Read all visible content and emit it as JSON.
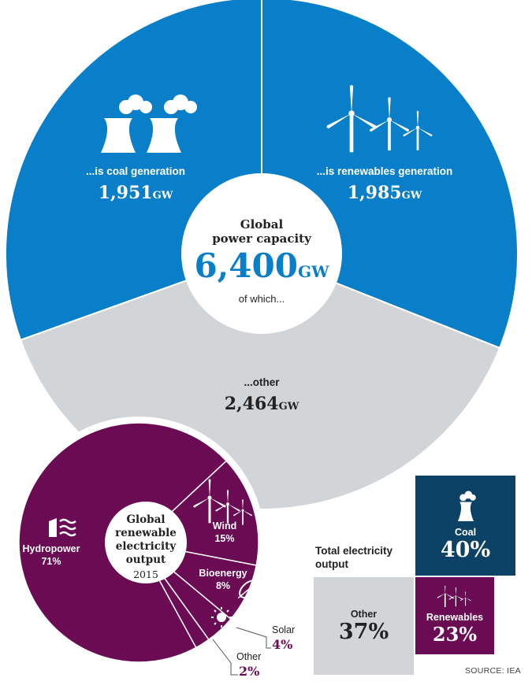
{
  "colors": {
    "blue": "#0a7fc9",
    "grey": "#d2d5d8",
    "purple": "#6a0b54",
    "navy": "#0c4266",
    "text_dark": "#222222"
  },
  "chart_data": [
    {
      "type": "pie",
      "title": "Global power capacity",
      "total": "6,400",
      "total_unit": "GW",
      "subtitle": "of which...",
      "slices": [
        {
          "label": "...is coal generation",
          "value": 1951,
          "display": "1,951",
          "unit": "GW",
          "icon": "cooling-towers-icon"
        },
        {
          "label": "...is renewables generation",
          "value": 1985,
          "display": "1,985",
          "unit": "GW",
          "icon": "wind-turbine-icon"
        },
        {
          "label": "...other",
          "value": 2464,
          "display": "2,464",
          "unit": "GW",
          "icon": ""
        }
      ]
    },
    {
      "type": "pie",
      "title_lines": [
        "Global",
        "renewable",
        "electricity",
        "output"
      ],
      "year": "2015",
      "slices": [
        {
          "label": "Hydropower",
          "value": 71,
          "display": "71%",
          "icon": "hydropower-icon"
        },
        {
          "label": "Wind",
          "value": 15,
          "display": "15%",
          "icon": "wind-turbine-icon"
        },
        {
          "label": "Bioenergy",
          "value": 8,
          "display": "8%",
          "icon": "leaf-icon"
        },
        {
          "label": "Solar",
          "value": 4,
          "display": "4%",
          "icon": "sun-icon"
        },
        {
          "label": "Other",
          "value": 2,
          "display": "2%",
          "icon": ""
        }
      ]
    },
    {
      "type": "table",
      "title_lines": [
        "Total electricity",
        "output"
      ],
      "cells": [
        {
          "label": "Coal",
          "value": 40,
          "display": "40%",
          "icon": "cooling-tower-icon"
        },
        {
          "label": "Other",
          "value": 37,
          "display": "37%",
          "icon": ""
        },
        {
          "label": "Renewables",
          "value": 23,
          "display": "23%",
          "icon": "wind-turbine-icon"
        }
      ]
    }
  ],
  "source": "SOURCE: IEA"
}
